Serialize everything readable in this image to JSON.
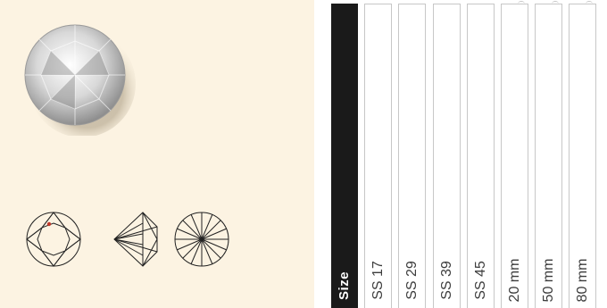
{
  "size_table": {
    "header": "Size",
    "sizes": [
      "SS 17",
      "SS 29",
      "SS 39",
      "SS 45",
      "20 mm",
      "50 mm",
      "80 mm"
    ]
  },
  "colors": {
    "panel_background": "#fcf3e2",
    "header_background": "#1a1a1a",
    "accent_dot": "#c0392b"
  },
  "icons": [
    "crystal-photo",
    "top-view-diagram",
    "side-view-diagram",
    "bottom-view-diagram"
  ]
}
